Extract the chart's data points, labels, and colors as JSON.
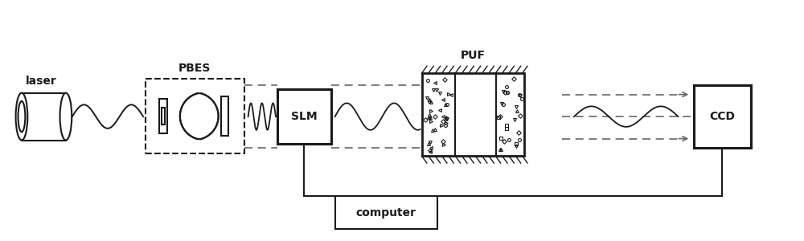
{
  "bg_color": "#ffffff",
  "line_color": "#1a1a1a",
  "dashed_color": "#666666",
  "figsize": [
    10,
    3
  ],
  "dpi": 100,
  "labels": {
    "laser": "laser",
    "PBES": "PBES",
    "SLM": "SLM",
    "PUF": "PUF",
    "CCD": "CCD",
    "computer": "computer"
  },
  "label_fontsize": 10,
  "label_fontweight": "bold",
  "xlim": [
    0,
    10
  ],
  "ylim": [
    0,
    3
  ]
}
